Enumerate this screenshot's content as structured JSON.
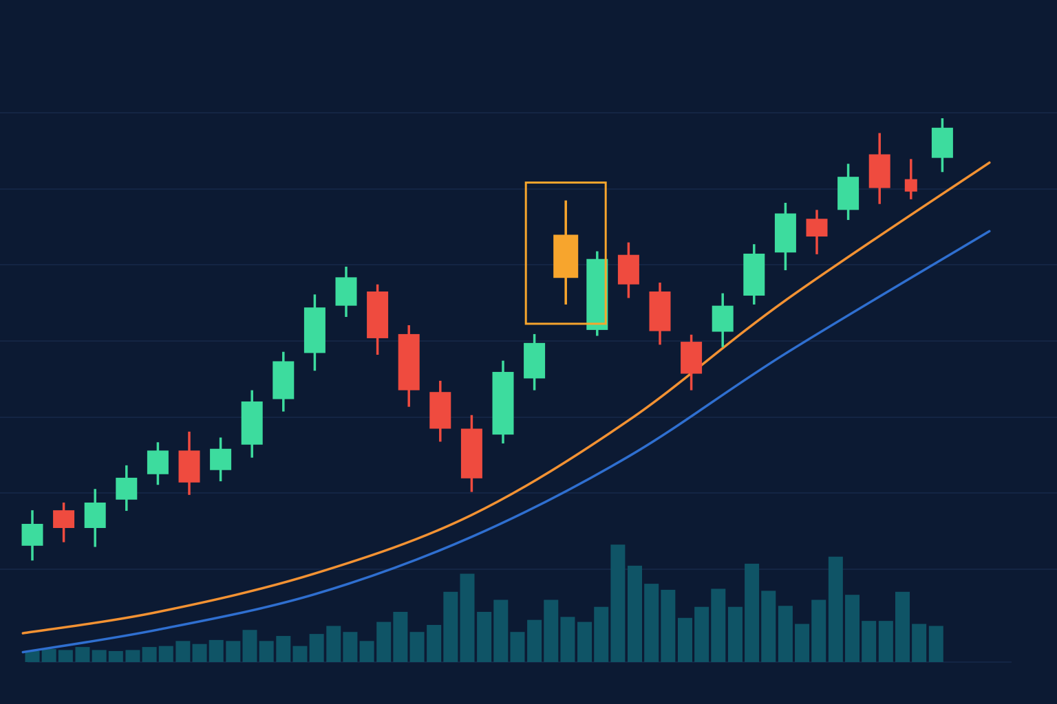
{
  "colors": {
    "background": "#0c1a33",
    "gridline": "#16294a",
    "bullish": "#3ddc9e",
    "bearish": "#ef4b3f",
    "highlight": "#f7a52d",
    "ma_fast": "#f39233",
    "ma_slow": "#2f6fd0",
    "volume": "#0f5466"
  },
  "chart_data": {
    "type": "candlestick",
    "title": "",
    "xlabel": "",
    "ylabel": "",
    "ylim": [
      0,
      100
    ],
    "grid": true,
    "legend": "none",
    "candles": [
      {
        "x": 1,
        "open": 17.0,
        "close": 20.7,
        "high": 23.0,
        "low": 14.5,
        "trend": "up"
      },
      {
        "x": 2,
        "open": 23.0,
        "close": 20.0,
        "high": 24.3,
        "low": 17.6,
        "trend": "down"
      },
      {
        "x": 3,
        "open": 20.0,
        "close": 24.3,
        "high": 26.6,
        "low": 16.8,
        "trend": "up"
      },
      {
        "x": 4,
        "open": 24.8,
        "close": 28.5,
        "high": 30.6,
        "low": 22.9,
        "trend": "up"
      },
      {
        "x": 5,
        "open": 29.1,
        "close": 33.1,
        "high": 34.5,
        "low": 27.3,
        "trend": "up"
      },
      {
        "x": 6,
        "open": 33.1,
        "close": 27.7,
        "high": 36.3,
        "low": 25.6,
        "trend": "down"
      },
      {
        "x": 7,
        "open": 29.8,
        "close": 33.4,
        "high": 35.3,
        "low": 27.9,
        "trend": "up"
      },
      {
        "x": 8,
        "open": 34.1,
        "close": 41.4,
        "high": 43.3,
        "low": 31.9,
        "trend": "up"
      },
      {
        "x": 9,
        "open": 41.8,
        "close": 48.2,
        "high": 49.8,
        "low": 39.7,
        "trend": "up"
      },
      {
        "x": 10,
        "open": 49.6,
        "close": 57.3,
        "high": 59.5,
        "low": 46.6,
        "trend": "up"
      },
      {
        "x": 11,
        "open": 57.6,
        "close": 62.4,
        "high": 64.2,
        "low": 55.7,
        "trend": "up"
      },
      {
        "x": 12,
        "open": 60.0,
        "close": 52.1,
        "high": 61.2,
        "low": 49.3,
        "trend": "down"
      },
      {
        "x": 13,
        "open": 52.8,
        "close": 43.3,
        "high": 54.3,
        "low": 40.5,
        "trend": "down"
      },
      {
        "x": 14,
        "open": 43.0,
        "close": 36.8,
        "high": 44.9,
        "low": 34.6,
        "trend": "down"
      },
      {
        "x": 15,
        "open": 36.8,
        "close": 28.4,
        "high": 39.1,
        "low": 26.1,
        "trend": "down"
      },
      {
        "x": 16,
        "open": 35.8,
        "close": 46.4,
        "high": 48.3,
        "low": 34.3,
        "trend": "up"
      },
      {
        "x": 17,
        "open": 45.3,
        "close": 51.3,
        "high": 52.8,
        "low": 43.3,
        "trend": "up"
      },
      {
        "x": 18,
        "open": 69.6,
        "close": 62.3,
        "high": 75.4,
        "low": 57.8,
        "trend": "highlight"
      },
      {
        "x": 19,
        "open": 53.5,
        "close": 65.5,
        "high": 66.8,
        "low": 52.5,
        "trend": "up"
      },
      {
        "x": 20,
        "open": 66.2,
        "close": 61.2,
        "high": 68.3,
        "low": 58.9,
        "trend": "down"
      },
      {
        "x": 21,
        "open": 60.0,
        "close": 53.3,
        "high": 61.5,
        "low": 51.0,
        "trend": "down"
      },
      {
        "x": 22,
        "open": 51.5,
        "close": 46.1,
        "high": 52.7,
        "low": 43.3,
        "trend": "down"
      },
      {
        "x": 23,
        "open": 53.2,
        "close": 57.6,
        "high": 59.7,
        "low": 50.6,
        "trend": "up"
      },
      {
        "x": 24,
        "open": 59.3,
        "close": 66.4,
        "high": 68.0,
        "low": 57.8,
        "trend": "up"
      },
      {
        "x": 25,
        "open": 66.6,
        "close": 73.2,
        "high": 75.0,
        "low": 63.6,
        "trend": "up"
      },
      {
        "x": 26,
        "open": 72.3,
        "close": 69.3,
        "high": 73.8,
        "low": 66.3,
        "trend": "down"
      },
      {
        "x": 27,
        "open": 73.8,
        "close": 79.4,
        "high": 81.6,
        "low": 72.1,
        "trend": "up"
      },
      {
        "x": 28,
        "open": 83.2,
        "close": 77.5,
        "high": 86.8,
        "low": 74.8,
        "trend": "down"
      },
      {
        "x": 29,
        "open": 79.0,
        "close": 76.9,
        "high": 82.4,
        "low": 75.6,
        "trend": "down"
      },
      {
        "x": 30,
        "open": 82.6,
        "close": 87.7,
        "high": 89.3,
        "low": 80.2,
        "trend": "up"
      }
    ],
    "highlighted_candle": 18,
    "moving_averages": [
      {
        "color_key": "ma_fast",
        "x": [
          0.7,
          5,
          10,
          15,
          20,
          25,
          31.5
        ],
        "y": [
          2.2,
          5.8,
          12.3,
          22.2,
          38.2,
          58.5,
          81.8
        ]
      },
      {
        "color_key": "ma_slow",
        "x": [
          0.7,
          5,
          10,
          15,
          20,
          25,
          31.5
        ],
        "y": [
          -1.0,
          2.8,
          8.8,
          18.5,
          32.1,
          49.5,
          70.2
        ]
      }
    ],
    "volume": {
      "x": [
        1,
        1.53,
        2.06,
        2.6,
        3.13,
        3.66,
        4.2,
        4.73,
        5.26,
        5.8,
        6.33,
        6.86,
        7.4,
        7.93,
        8.46,
        9,
        9.53,
        10.06,
        10.6,
        11.13,
        11.66,
        12.2,
        12.73,
        13.26,
        13.8,
        14.33,
        14.86,
        15.4,
        15.93,
        16.46,
        17,
        17.53,
        18.06,
        18.6,
        19.13,
        19.66,
        20.2,
        20.73,
        21.26,
        21.8,
        22.33,
        22.86,
        23.4,
        23.93,
        24.46,
        25,
        25.53,
        26.06,
        26.6,
        27.13,
        27.66,
        28.2,
        28.73,
        29.26,
        29.8
      ],
      "values": [
        1.1,
        1.3,
        1.2,
        1.5,
        1.2,
        1.1,
        1.2,
        1.5,
        1.6,
        2.1,
        1.8,
        2.2,
        2.1,
        3.2,
        2.1,
        2.6,
        1.6,
        2.8,
        3.6,
        3.0,
        2.1,
        4.0,
        5.0,
        3.0,
        3.7,
        7.0,
        8.8,
        5.0,
        6.2,
        3.0,
        4.2,
        6.2,
        4.5,
        4.0,
        5.5,
        11.7,
        9.6,
        7.8,
        7.2,
        4.4,
        5.5,
        7.3,
        5.5,
        9.8,
        7.1,
        5.6,
        3.8,
        6.2,
        10.5,
        6.7,
        4.1,
        4.1,
        7.0,
        3.8,
        3.6
      ]
    }
  }
}
